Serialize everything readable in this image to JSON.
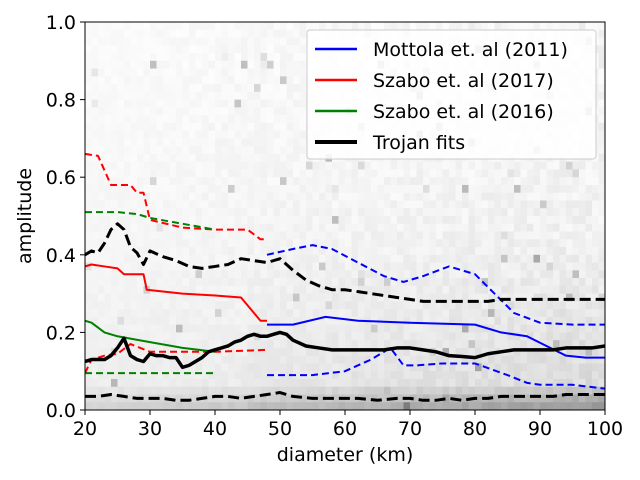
{
  "chart_data": {
    "type": "line",
    "xlabel": "diameter (km)",
    "ylabel": "amplitude",
    "xlim": [
      20,
      100
    ],
    "ylim": [
      0.0,
      1.0
    ],
    "xticks": [
      "20",
      "30",
      "40",
      "50",
      "60",
      "70",
      "80",
      "90",
      "100"
    ],
    "yticks": [
      "0.0",
      "0.2",
      "0.4",
      "0.6",
      "0.8",
      "1.0"
    ],
    "legend_position": "top-right",
    "legend": [
      {
        "label": "Mottola et. al (2011)",
        "color": "#0000ff",
        "width": 2
      },
      {
        "label": "Szabo et. al (2017)",
        "color": "#ff0000",
        "width": 2
      },
      {
        "label": "Szabo et. al (2016)",
        "color": "#008000",
        "width": 2
      },
      {
        "label": "Trojan fits",
        "color": "#000000",
        "width": 4
      }
    ],
    "series": [
      {
        "name": "Mottola et. al (2011)",
        "role": "median",
        "style": "solid",
        "color": "#0000ff",
        "width": 2,
        "x": [
          48,
          52,
          57,
          62,
          70,
          80,
          84,
          88,
          91,
          94,
          97,
          100
        ],
        "y": [
          0.22,
          0.22,
          0.24,
          0.23,
          0.225,
          0.22,
          0.2,
          0.19,
          0.165,
          0.14,
          0.135,
          0.135
        ]
      },
      {
        "role": "upper",
        "style": "dashed",
        "color": "#0000ff",
        "width": 2,
        "x": [
          48,
          52,
          55,
          58,
          62,
          66,
          69,
          72,
          76,
          80,
          83,
          86,
          90,
          95,
          100
        ],
        "y": [
          0.4,
          0.415,
          0.425,
          0.415,
          0.38,
          0.345,
          0.33,
          0.345,
          0.37,
          0.35,
          0.3,
          0.25,
          0.225,
          0.22,
          0.22
        ]
      },
      {
        "role": "lower",
        "style": "dashed",
        "color": "#0000ff",
        "width": 2,
        "x": [
          48,
          55,
          60,
          64,
          67,
          69,
          71,
          75,
          80,
          85,
          88,
          90,
          95,
          100
        ],
        "y": [
          0.09,
          0.09,
          0.1,
          0.13,
          0.16,
          0.115,
          0.115,
          0.12,
          0.12,
          0.09,
          0.07,
          0.065,
          0.065,
          0.055
        ]
      },
      {
        "name": "Szabo et. al (2017)",
        "role": "median",
        "style": "solid",
        "color": "#ff0000",
        "width": 2,
        "x": [
          20,
          21,
          23,
          25,
          26,
          29,
          29.5,
          35,
          40,
          44,
          46,
          47,
          48
        ],
        "y": [
          0.37,
          0.375,
          0.37,
          0.365,
          0.35,
          0.35,
          0.31,
          0.3,
          0.295,
          0.29,
          0.25,
          0.23,
          0.23
        ]
      },
      {
        "role": "upper",
        "style": "dashed",
        "color": "#ff0000",
        "width": 2,
        "x": [
          20,
          22,
          24,
          27,
          28,
          29,
          30,
          35,
          40,
          45,
          47,
          48
        ],
        "y": [
          0.66,
          0.655,
          0.58,
          0.58,
          0.56,
          0.56,
          0.49,
          0.47,
          0.465,
          0.465,
          0.44,
          0.44
        ]
      },
      {
        "role": "lower",
        "style": "dashed",
        "color": "#ff0000",
        "width": 2,
        "x": [
          20,
          21,
          23,
          25,
          27,
          30,
          40,
          48
        ],
        "y": [
          0.095,
          0.13,
          0.14,
          0.145,
          0.17,
          0.15,
          0.15,
          0.155
        ]
      },
      {
        "name": "Szabo et. al (2016)",
        "role": "median",
        "style": "solid",
        "color": "#008000",
        "width": 2,
        "x": [
          20,
          21,
          23,
          25,
          30,
          35,
          40
        ],
        "y": [
          0.23,
          0.225,
          0.2,
          0.19,
          0.175,
          0.16,
          0.15
        ]
      },
      {
        "role": "upper",
        "style": "dashed",
        "color": "#008000",
        "width": 2,
        "x": [
          20,
          25,
          28,
          30,
          35,
          40
        ],
        "y": [
          0.51,
          0.51,
          0.505,
          0.495,
          0.48,
          0.465
        ]
      },
      {
        "role": "lower",
        "style": "dashed",
        "color": "#008000",
        "width": 2,
        "x": [
          20,
          25,
          30,
          40
        ],
        "y": [
          0.095,
          0.095,
          0.095,
          0.095
        ]
      },
      {
        "name": "Trojan fits",
        "role": "median",
        "style": "solid",
        "color": "#000000",
        "width": 3.5,
        "x": [
          20,
          21,
          22,
          23,
          24,
          25,
          26,
          27,
          28,
          29,
          30,
          31,
          32,
          33,
          34,
          35,
          36,
          37,
          38,
          39,
          40,
          41,
          42,
          43,
          44,
          45,
          46,
          47,
          48,
          49,
          50,
          51,
          52,
          54,
          56,
          58,
          60,
          62,
          64,
          66,
          68,
          70,
          72,
          74,
          76,
          78,
          80,
          82,
          84,
          86,
          88,
          90,
          92,
          94,
          96,
          98,
          100
        ],
        "y": [
          0.125,
          0.13,
          0.13,
          0.13,
          0.14,
          0.16,
          0.185,
          0.14,
          0.13,
          0.125,
          0.145,
          0.14,
          0.14,
          0.135,
          0.135,
          0.11,
          0.115,
          0.125,
          0.135,
          0.15,
          0.155,
          0.16,
          0.165,
          0.175,
          0.18,
          0.19,
          0.195,
          0.19,
          0.19,
          0.195,
          0.2,
          0.195,
          0.18,
          0.165,
          0.16,
          0.155,
          0.155,
          0.155,
          0.155,
          0.155,
          0.16,
          0.16,
          0.155,
          0.15,
          0.14,
          0.138,
          0.135,
          0.145,
          0.15,
          0.155,
          0.155,
          0.155,
          0.155,
          0.16,
          0.16,
          0.16,
          0.165
        ]
      },
      {
        "role": "upper",
        "style": "dashed",
        "color": "#000000",
        "width": 3,
        "x": [
          20,
          21,
          22,
          23,
          24,
          25,
          26,
          27,
          28,
          29,
          30,
          32,
          34,
          36,
          38,
          40,
          42,
          44,
          46,
          48,
          50,
          52,
          54,
          56,
          58,
          60,
          62,
          64,
          66,
          68,
          70,
          72,
          74,
          76,
          78,
          80,
          82,
          84,
          86,
          88,
          90,
          92,
          94,
          96,
          98,
          100
        ],
        "y": [
          0.4,
          0.41,
          0.405,
          0.43,
          0.465,
          0.48,
          0.465,
          0.42,
          0.405,
          0.375,
          0.41,
          0.395,
          0.385,
          0.37,
          0.365,
          0.37,
          0.375,
          0.39,
          0.385,
          0.38,
          0.39,
          0.36,
          0.335,
          0.32,
          0.31,
          0.31,
          0.305,
          0.3,
          0.295,
          0.29,
          0.285,
          0.28,
          0.28,
          0.28,
          0.28,
          0.28,
          0.28,
          0.285,
          0.285,
          0.285,
          0.285,
          0.285,
          0.285,
          0.285,
          0.285,
          0.285
        ]
      },
      {
        "role": "lower",
        "style": "dashed",
        "color": "#000000",
        "width": 3,
        "x": [
          20,
          22,
          24,
          26,
          28,
          30,
          32,
          34,
          36,
          38,
          40,
          42,
          44,
          46,
          48,
          50,
          52,
          55,
          60,
          62,
          65,
          68,
          70,
          72,
          74,
          76,
          78,
          80,
          82,
          84,
          86,
          88,
          90,
          92,
          94,
          96,
          98,
          100
        ],
        "y": [
          0.035,
          0.035,
          0.04,
          0.035,
          0.03,
          0.03,
          0.03,
          0.025,
          0.025,
          0.03,
          0.035,
          0.035,
          0.03,
          0.035,
          0.04,
          0.045,
          0.035,
          0.03,
          0.03,
          0.03,
          0.025,
          0.03,
          0.03,
          0.025,
          0.025,
          0.03,
          0.025,
          0.03,
          0.03,
          0.035,
          0.035,
          0.035,
          0.035,
          0.035,
          0.04,
          0.04,
          0.04,
          0.04
        ]
      }
    ]
  }
}
